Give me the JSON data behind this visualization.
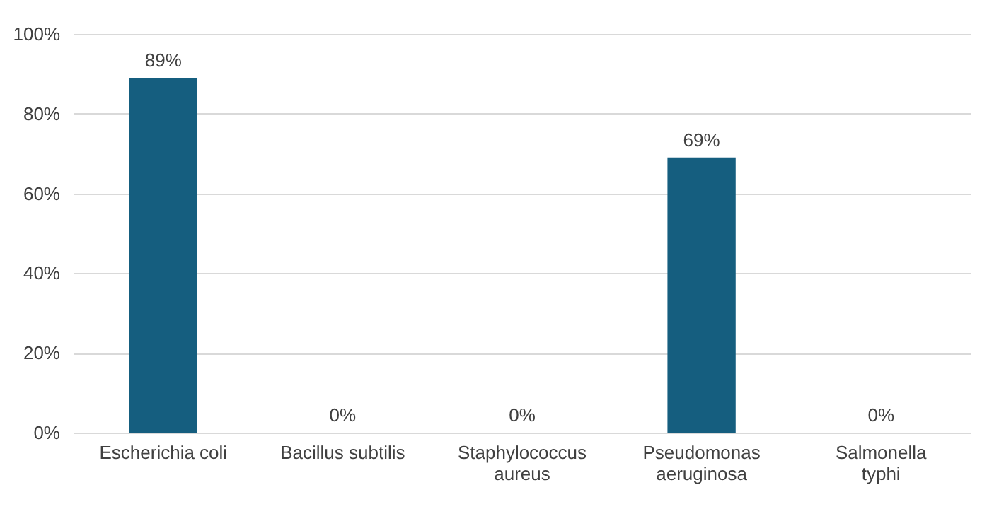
{
  "chart_data": {
    "type": "bar",
    "categories": [
      "Escherichia coli",
      "Bacillus subtilis",
      "Staphylococcus\naureus",
      "Pseudomonas\naeruginosa",
      "Salmonella\ntyphi"
    ],
    "values": [
      89,
      0,
      0,
      69,
      0
    ],
    "value_labels": [
      "89%",
      "0%",
      "0%",
      "69%",
      "0%"
    ],
    "color": "#155e7f",
    "ylim": [
      0,
      100
    ],
    "yticks": [
      {
        "value": 0,
        "label": "0%"
      },
      {
        "value": 20,
        "label": "20%"
      },
      {
        "value": 40,
        "label": "40%"
      },
      {
        "value": 60,
        "label": "60%"
      },
      {
        "value": 80,
        "label": "80%"
      },
      {
        "value": 100,
        "label": "100%"
      }
    ],
    "grid": "y"
  }
}
